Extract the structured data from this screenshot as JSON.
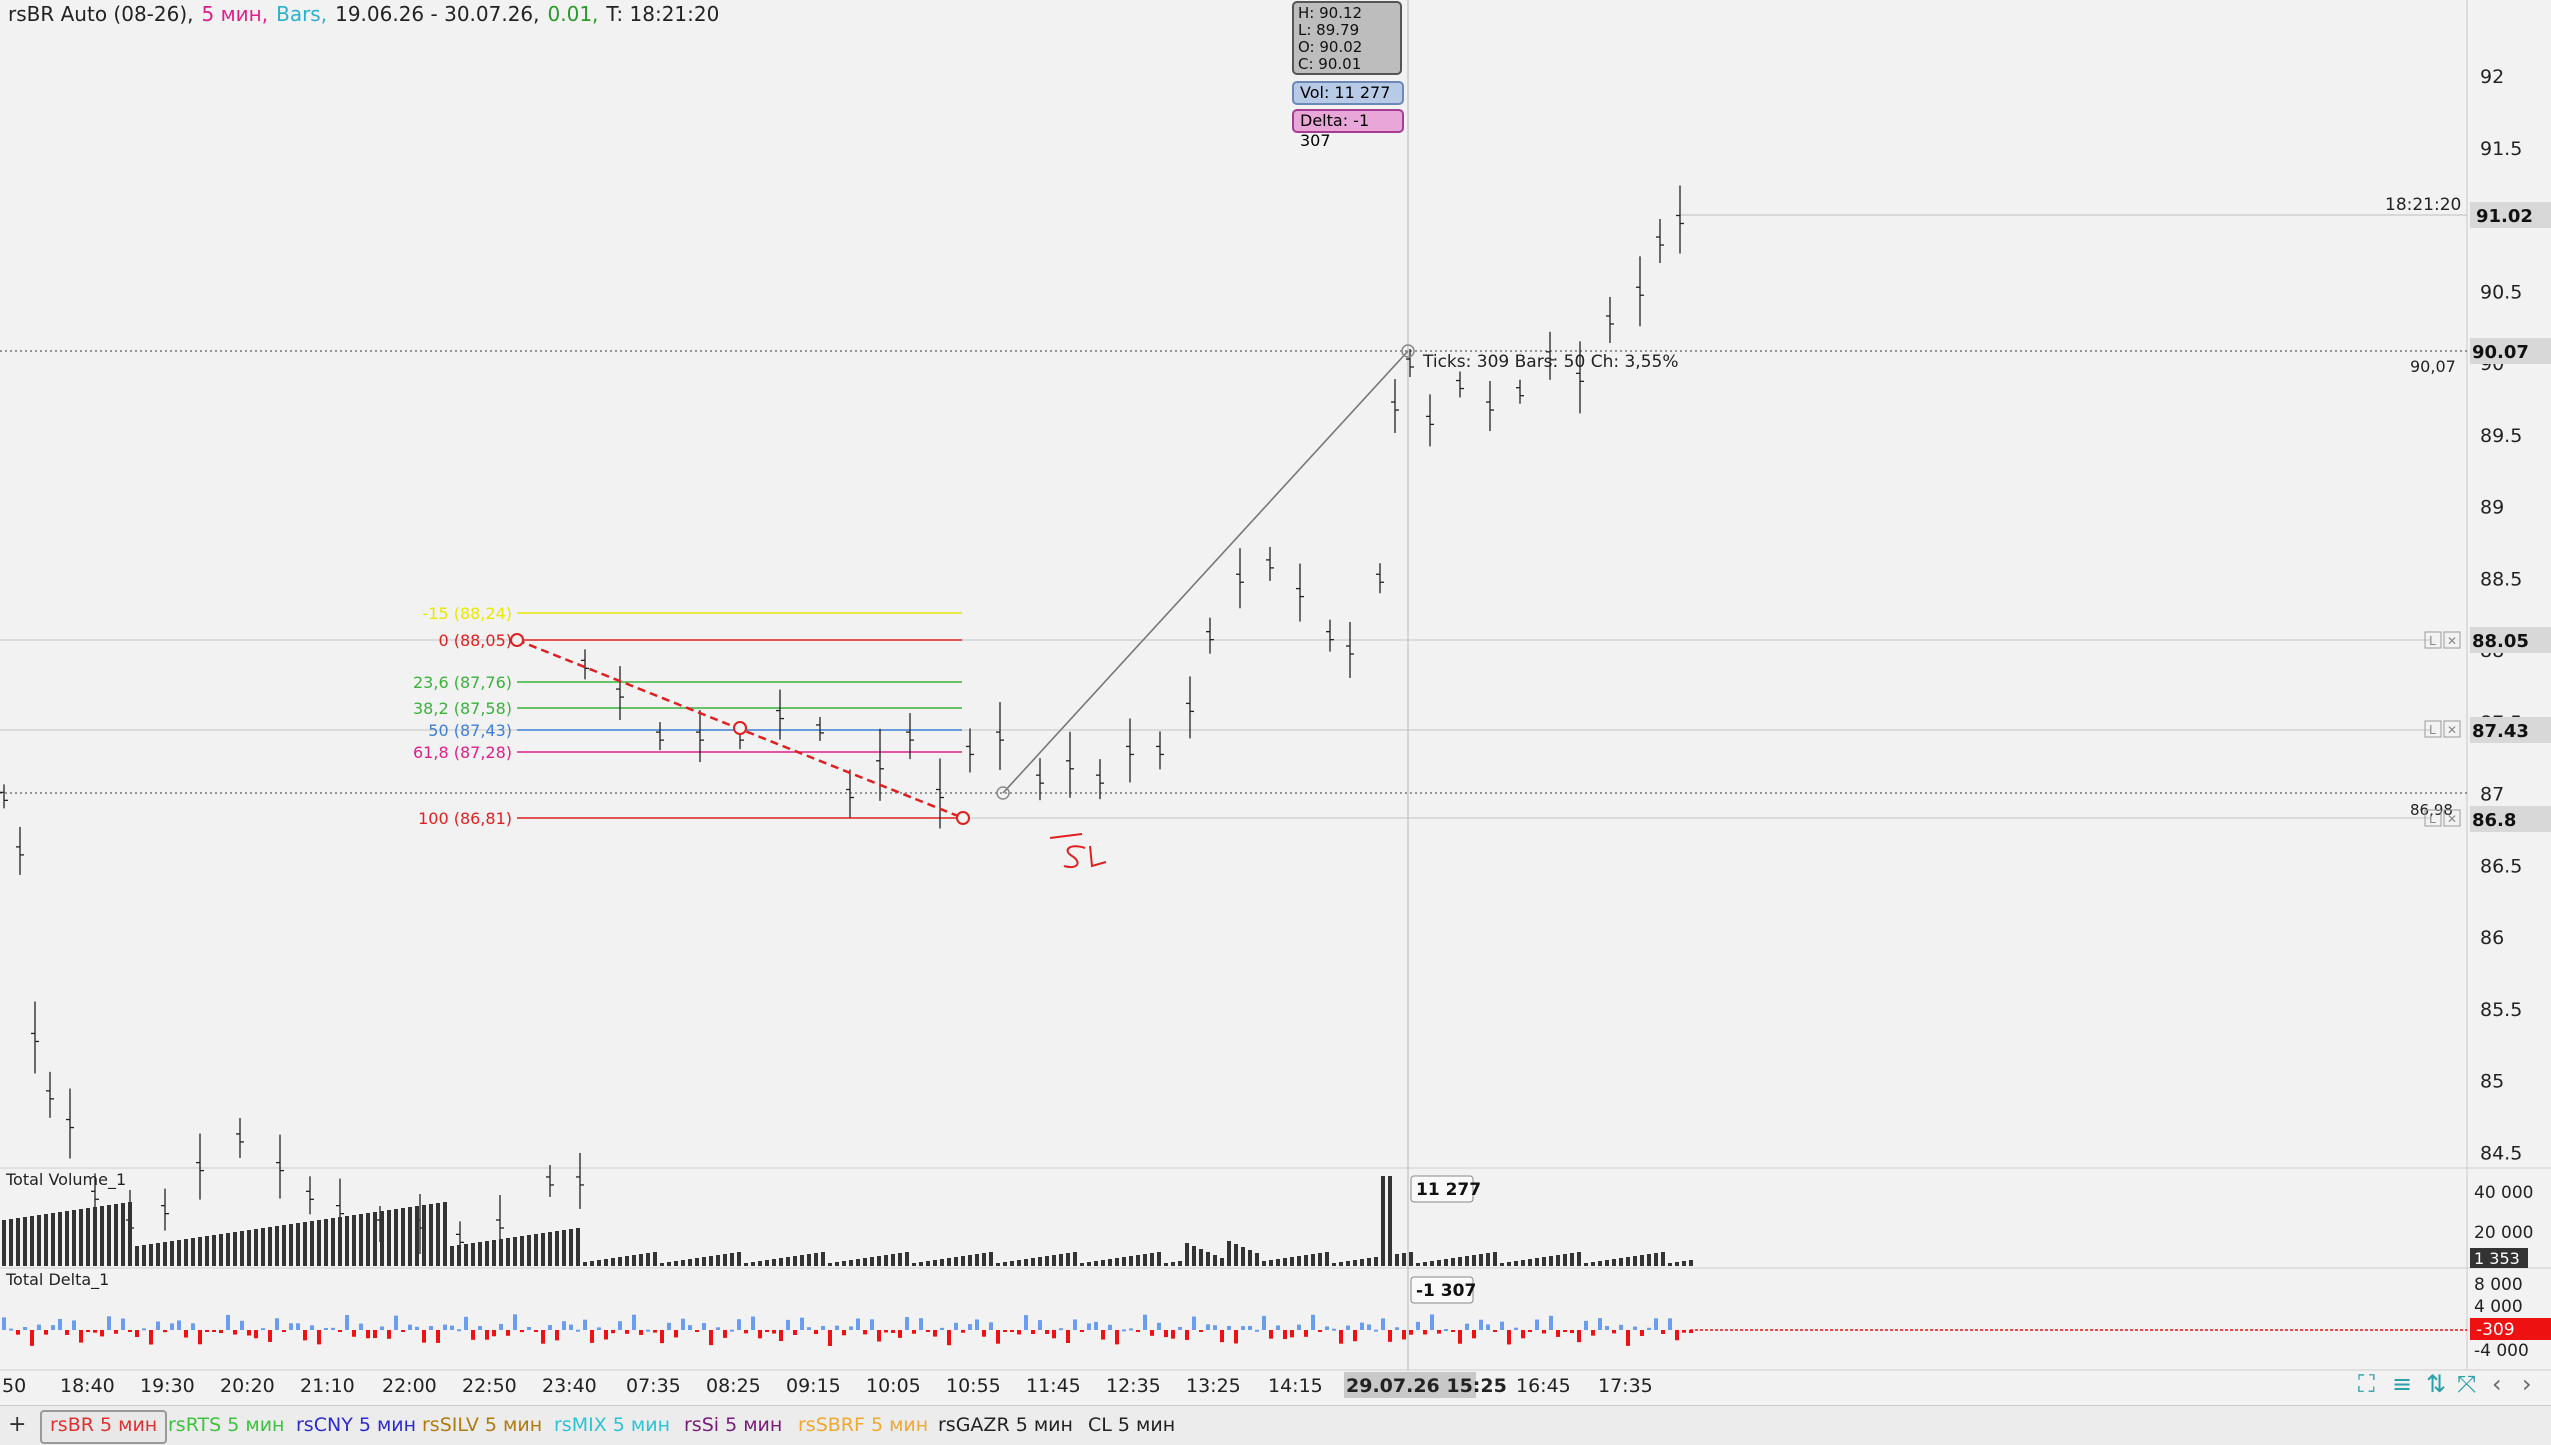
{
  "header": {
    "instrument": "rsBR Auto (08-26),",
    "timeframe": "5 мин,",
    "chart_type": "Bars,",
    "date_range": "19.06.26 - 30.07.26,",
    "change": "0.01,",
    "time": "T: 18:21:20"
  },
  "ohlc_box": {
    "high": "H: 90.12",
    "low": "L: 89.79",
    "open": "O: 90.02",
    "close": "C: 90.01"
  },
  "volume_badge": "Vol: 11 277",
  "delta_badge": "Delta: -1 307",
  "price_axis": {
    "ticks": [
      "92",
      "91.5",
      "91",
      "90.5",
      "90",
      "89.5",
      "89",
      "88.5",
      "88",
      "87.5",
      "87",
      "86.5",
      "86",
      "85.5",
      "85",
      "84.5"
    ],
    "last_price": "91.02",
    "crosshair_price": "90.07",
    "level_88": "88.05",
    "level_87": "87.43",
    "level_86": "86.8",
    "crosshair_label": "90,07",
    "level_86_small": "86,98",
    "last_time": "18:21:20"
  },
  "time_axis": {
    "labels": [
      "50",
      "18:40",
      "19:30",
      "20:20",
      "21:10",
      "22:00",
      "22:50",
      "23:40",
      "07:35",
      "08:25",
      "09:15",
      "10:05",
      "10:55",
      "11:45",
      "12:35",
      "13:25",
      "14:15",
      "29.07.26 15:25",
      "16:45",
      "17:35"
    ]
  },
  "fibonacci": {
    "levels": [
      {
        "label": "-15 (88,24)",
        "color": "#e8e800"
      },
      {
        "label": "0 (88,05)",
        "color": "#e02020"
      },
      {
        "label": "23,6 (87,76)",
        "color": "#3ab23a"
      },
      {
        "label": "38,2 (87,58)",
        "color": "#3ab23a"
      },
      {
        "label": "50 (87,43)",
        "color": "#3d7fd6"
      },
      {
        "label": "61,8 (87,28)",
        "color": "#e0208a"
      },
      {
        "label": "100 (86,81)",
        "color": "#e02020"
      }
    ]
  },
  "ruler_label": "Ticks: 309  Bars: 50  Ch: 3,55%",
  "annotation": "SL",
  "volume_panel": {
    "title": "Total Volume_1",
    "ticks": [
      "40 000",
      "20 000"
    ],
    "current": "1 353",
    "cursor_value": "11 277"
  },
  "delta_panel": {
    "title": "Total Delta_1",
    "ticks": [
      "8 000",
      "4 000",
      "-4 000"
    ],
    "current": "-309",
    "cursor_value": "-1 307"
  },
  "tabs": [
    {
      "label": "rsBR 5 мин",
      "color": "#e03030",
      "active": true
    },
    {
      "label": "rsRTS 5 мин",
      "color": "#3cc43c",
      "active": false
    },
    {
      "label": "rsCNY 5 мин",
      "color": "#2b2bd0",
      "active": false
    },
    {
      "label": "rsSILV 5 мин",
      "color": "#b07a10",
      "active": false
    },
    {
      "label": "rsMIX 5 мин",
      "color": "#2bc4d8",
      "active": false
    },
    {
      "label": "rsSi 5 мин",
      "color": "#7a1a7a",
      "active": false
    },
    {
      "label": "rsSBRF 5 мин",
      "color": "#f0a830",
      "active": false
    },
    {
      "label": "rsGAZR 5 мин",
      "color": "#222222",
      "active": false
    },
    {
      "label": "CL 5 мин",
      "color": "#222222",
      "active": false
    }
  ],
  "toolbar_icons": [
    "fullscreen-icon",
    "settings-sliders-icon",
    "autoscale-icon",
    "expand-icon",
    "scroll-left-icon",
    "scroll-right-icon"
  ],
  "add_tab": "+",
  "colors": {
    "header_timeframe": "#e0208a",
    "header_type": "#2bb0d0",
    "header_change": "#2a9a2a",
    "delta_pos": "#6a9cf0",
    "delta_neg": "#ee1111"
  }
}
